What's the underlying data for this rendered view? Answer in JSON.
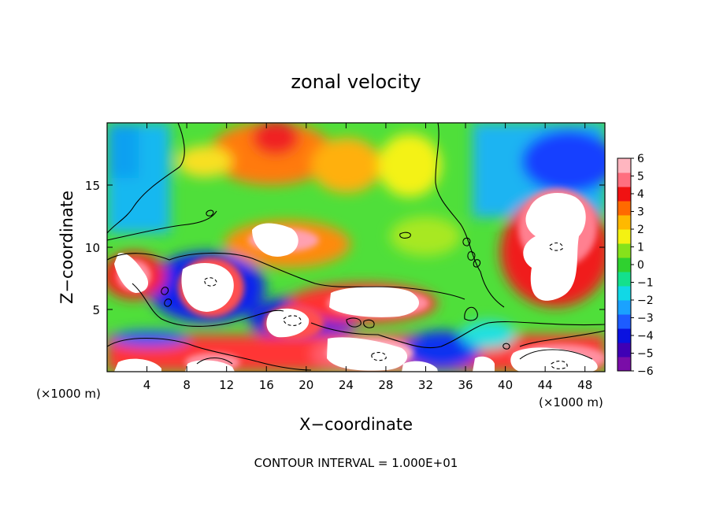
{
  "chart_data": {
    "type": "heatmap",
    "title": "zonal velocity",
    "xlabel": "X−coordinate",
    "ylabel": "Z−coordinate",
    "x_unit_left": "(×1000 m)",
    "x_unit_right": "(×1000 m)",
    "xlim": [
      0,
      50
    ],
    "ylim": [
      0,
      20
    ],
    "x_ticks": [
      4,
      8,
      12,
      16,
      20,
      24,
      28,
      32,
      36,
      40,
      44,
      48
    ],
    "y_ticks": [
      5,
      10,
      15
    ],
    "footer": "CONTOUR INTERVAL = 1.000E+01",
    "colorbar": {
      "levels": [
        6,
        5,
        4,
        3,
        2,
        1,
        0,
        -1,
        -2,
        -3,
        -4,
        -5,
        -6
      ],
      "labels": [
        "6",
        "5",
        "4",
        "3",
        "2",
        "1",
        "0",
        "−1",
        "−2",
        "−3",
        "−4",
        "−5",
        "−6"
      ],
      "range": [
        -6,
        6
      ],
      "colors": [
        "#7a0da8",
        "#3f00b5",
        "#0a12e0",
        "#1d5cff",
        "#1aa2ff",
        "#11d8e6",
        "#14e08c",
        "#2fd12f",
        "#86e21b",
        "#f4f212",
        "#ffb900",
        "#ff6a00",
        "#f01212",
        "#ff6f7f",
        "#ffb6c0"
      ]
    },
    "grid": false,
    "legend": "right"
  }
}
